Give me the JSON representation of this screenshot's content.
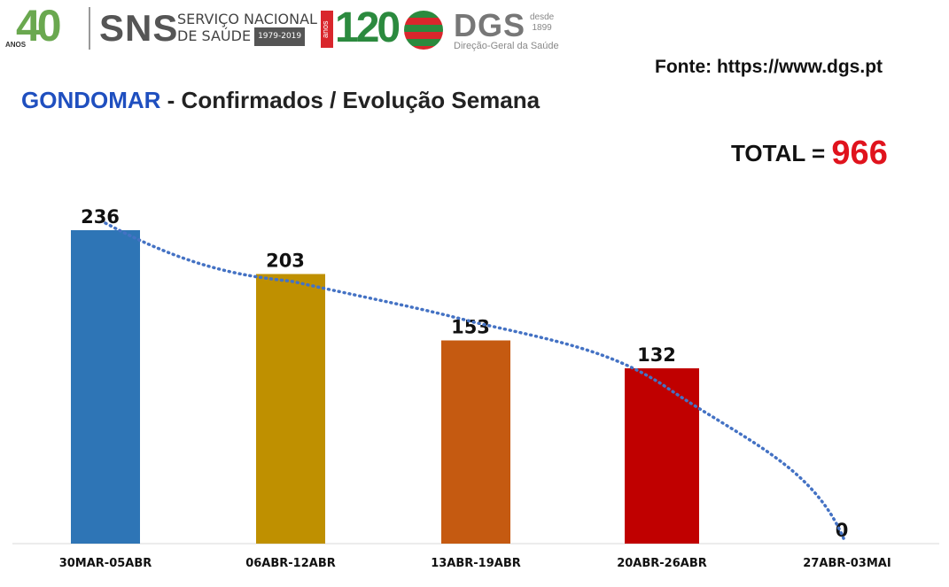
{
  "header": {
    "logo_40": "40",
    "logo_40_sub": "ANOS",
    "sns": "SNS",
    "sns_line1": "SERVIÇO NACIONAL",
    "sns_line2": "DE SAÚDE",
    "sns_years": "1979-2019",
    "logo_120_sub": "anos",
    "logo_120": "120",
    "dgs": "DGS",
    "dgs_since_1": "desde",
    "dgs_since_2": "1899",
    "dgs_full": "Direção-Geral da Saúde"
  },
  "source": "Fonte: https://www.dgs.pt",
  "title": {
    "place": "GONDOMAR",
    "rest": " - Confirmados / Evolução Semana"
  },
  "total": {
    "label": "TOTAL = ",
    "value": "966"
  },
  "chart_data": {
    "type": "bar",
    "categories": [
      "30MAR-05ABR",
      "06ABR-12ABR",
      "13ABR-19ABR",
      "20ABR-26ABR",
      "27ABR-03MAI"
    ],
    "values": [
      236,
      203,
      153,
      132,
      0
    ],
    "colors": [
      "#2e75b6",
      "#bf9000",
      "#c55a11",
      "#c00000",
      "#7f7f7f"
    ],
    "trendline": {
      "style": "dotted",
      "color": "#4472c4"
    },
    "ylim": [
      0,
      236
    ],
    "grid": false,
    "legend": "none"
  }
}
